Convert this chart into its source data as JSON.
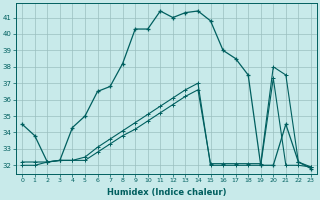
{
  "xlabel": "Humidex (Indice chaleur)",
  "bg_color": "#c8eaea",
  "grid_color": "#9bbfbf",
  "line_color": "#005f5f",
  "xlim": [
    -0.5,
    23.5
  ],
  "ylim": [
    31.5,
    41.9
  ],
  "yticks": [
    32,
    33,
    34,
    35,
    36,
    37,
    38,
    39,
    40,
    41
  ],
  "xticks": [
    0,
    1,
    2,
    3,
    4,
    5,
    6,
    7,
    8,
    9,
    10,
    11,
    12,
    13,
    14,
    15,
    16,
    17,
    18,
    19,
    20,
    21,
    22,
    23
  ],
  "curve1_x": [
    0,
    1,
    2,
    3,
    4,
    5,
    6,
    7,
    8,
    9,
    10,
    11,
    12,
    13,
    14,
    15,
    16,
    17,
    18,
    19,
    20,
    21,
    22,
    23
  ],
  "curve1_y": [
    34.5,
    33.8,
    32.2,
    32.3,
    34.3,
    35.0,
    36.5,
    36.8,
    38.2,
    40.3,
    40.3,
    41.4,
    41.0,
    41.3,
    41.4,
    40.8,
    39.0,
    38.5,
    37.5,
    32.0,
    32.0,
    34.5,
    32.2,
    31.8
  ],
  "curve2_x": [
    0,
    1,
    2,
    3,
    4,
    5,
    6,
    7,
    8,
    9,
    10,
    11,
    12,
    13,
    14,
    15,
    16,
    17,
    18,
    19,
    20,
    21,
    22,
    23
  ],
  "curve2_y": [
    32.2,
    32.2,
    32.2,
    32.3,
    32.3,
    32.3,
    32.8,
    33.3,
    33.8,
    34.2,
    34.7,
    35.2,
    35.7,
    36.2,
    36.6,
    32.1,
    32.1,
    32.1,
    32.1,
    32.1,
    38.0,
    37.5,
    32.2,
    31.9
  ],
  "curve3_x": [
    0,
    1,
    2,
    3,
    4,
    5,
    6,
    7,
    8,
    9,
    10,
    11,
    12,
    13,
    14,
    15,
    16,
    17,
    18,
    19,
    20,
    21,
    22,
    23
  ],
  "curve3_y": [
    32.0,
    32.0,
    32.2,
    32.3,
    32.3,
    32.5,
    33.1,
    33.6,
    34.1,
    34.6,
    35.1,
    35.6,
    36.1,
    36.6,
    37.0,
    32.0,
    32.0,
    32.0,
    32.0,
    32.0,
    37.3,
    32.0,
    32.0,
    31.9
  ]
}
